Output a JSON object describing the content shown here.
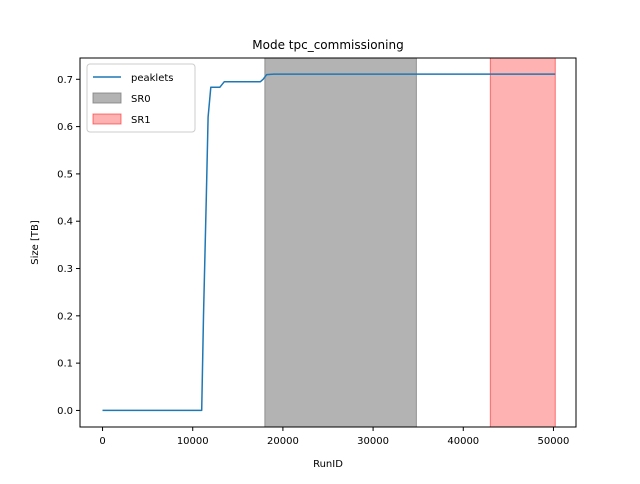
{
  "chart_data": {
    "type": "line",
    "title": "Mode tpc_commissioning",
    "xlabel": "RunID",
    "ylabel": "Size [TB]",
    "xlim": [
      -2500,
      52500
    ],
    "ylim": [
      -0.035,
      0.745
    ],
    "xticks": [
      0,
      10000,
      20000,
      30000,
      40000,
      50000
    ],
    "yticks": [
      0.0,
      0.1,
      0.2,
      0.3,
      0.4,
      0.5,
      0.6,
      0.7
    ],
    "grid": false,
    "legend_position": "upper-left",
    "series": [
      {
        "name": "peaklets",
        "color": "#1f77b4",
        "x": [
          0,
          11000,
          11200,
          11500,
          11700,
          12000,
          13000,
          13500,
          14000,
          17500,
          17800,
          18200,
          19000,
          50200
        ],
        "y": [
          0.0,
          0.0,
          0.2,
          0.45,
          0.62,
          0.683,
          0.683,
          0.695,
          0.695,
          0.695,
          0.7,
          0.71,
          0.711,
          0.711
        ]
      }
    ],
    "spans": [
      {
        "name": "SR0",
        "x_start": 18000,
        "x_end": 34800,
        "color": "#808080",
        "opacity": 0.6
      },
      {
        "name": "SR1",
        "x_start": 43000,
        "x_end": 50200,
        "color": "#ff0000",
        "opacity": 0.3
      }
    ]
  }
}
